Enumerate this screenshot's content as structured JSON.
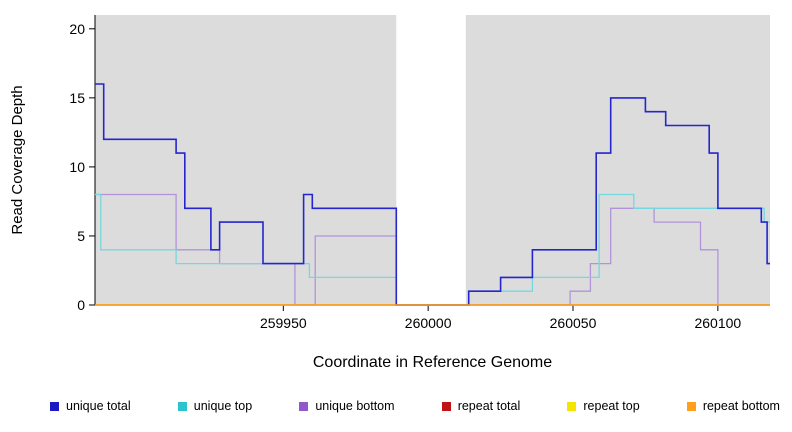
{
  "chart_data": {
    "type": "line",
    "subtype": "step-coverage",
    "title": "",
    "xlabel": "Coordinate in Reference Genome",
    "ylabel": "Read Coverage Depth",
    "xlim": [
      259885,
      260118
    ],
    "ylim": [
      0,
      21
    ],
    "x_ticks": [
      259950,
      260000,
      260050,
      260100
    ],
    "y_ticks": [
      0,
      5,
      10,
      15,
      20
    ],
    "grid": false,
    "legend_position": "bottom",
    "panel_background_color": "#DCDCDC",
    "gap_region": {
      "x0": 259989,
      "x1": 260013,
      "color": "#FFFFFF"
    },
    "background_regions": [
      {
        "x0": 259885,
        "x1": 259989,
        "color": "#DCDCDC"
      },
      {
        "x0": 260013,
        "x1": 260118,
        "color": "#DCDCDC"
      }
    ],
    "draw_order": [
      3,
      4,
      2,
      1,
      0,
      5
    ],
    "series": [
      {
        "name": "unique total",
        "color": "#2525CF",
        "legend_color": "#1A1AC4",
        "width": 1.6,
        "step_points": [
          [
            259885,
            16
          ],
          [
            259888,
            12
          ],
          [
            259913,
            11
          ],
          [
            259916,
            7
          ],
          [
            259925,
            4
          ],
          [
            259928,
            6
          ],
          [
            259943,
            3
          ],
          [
            259957,
            8
          ],
          [
            259960,
            7
          ],
          [
            259989,
            0
          ],
          [
            260014,
            1
          ],
          [
            260025,
            2
          ],
          [
            260036,
            4
          ],
          [
            260058,
            11
          ],
          [
            260063,
            15
          ],
          [
            260075,
            14
          ],
          [
            260082,
            13
          ],
          [
            260097,
            11
          ],
          [
            260100,
            7
          ],
          [
            260115,
            6
          ],
          [
            260117,
            3
          ],
          [
            260118,
            3
          ]
        ]
      },
      {
        "name": "unique top",
        "color": "#74D8DF",
        "legend_color": "#2BC4CE",
        "width": 1.3,
        "step_points": [
          [
            259885,
            8
          ],
          [
            259887,
            4
          ],
          [
            259913,
            3
          ],
          [
            259959,
            2
          ],
          [
            259989,
            0
          ],
          [
            260014,
            1
          ],
          [
            260036,
            2
          ],
          [
            260059,
            8
          ],
          [
            260071,
            7
          ],
          [
            260115,
            7
          ],
          [
            260116,
            6
          ],
          [
            260118,
            6
          ]
        ]
      },
      {
        "name": "unique bottom",
        "color": "#B293D8",
        "legend_color": "#9257C9",
        "width": 1.3,
        "step_points": [
          [
            259885,
            8
          ],
          [
            259913,
            4
          ],
          [
            259928,
            3
          ],
          [
            259954,
            0
          ],
          [
            259961,
            5
          ],
          [
            259989,
            0
          ],
          [
            260049,
            1
          ],
          [
            260056,
            3
          ],
          [
            260063,
            7
          ],
          [
            260078,
            6
          ],
          [
            260094,
            4
          ],
          [
            260100,
            0
          ],
          [
            260118,
            0
          ]
        ]
      },
      {
        "name": "repeat total",
        "color": "#CC0000",
        "legend_color": "#C01414",
        "width": 1.2,
        "step_points": [
          [
            259885,
            0
          ],
          [
            260118,
            0
          ]
        ]
      },
      {
        "name": "repeat top",
        "color": "#F5E400",
        "legend_color": "#F5E400",
        "width": 1.2,
        "step_points": [
          [
            259885,
            0
          ],
          [
            260118,
            0
          ]
        ]
      },
      {
        "name": "repeat bottom",
        "color": "#FF9F1A",
        "legend_color": "#FF9F1A",
        "width": 1.4,
        "step_points": [
          [
            259885,
            0
          ],
          [
            260118,
            0
          ]
        ]
      }
    ]
  }
}
